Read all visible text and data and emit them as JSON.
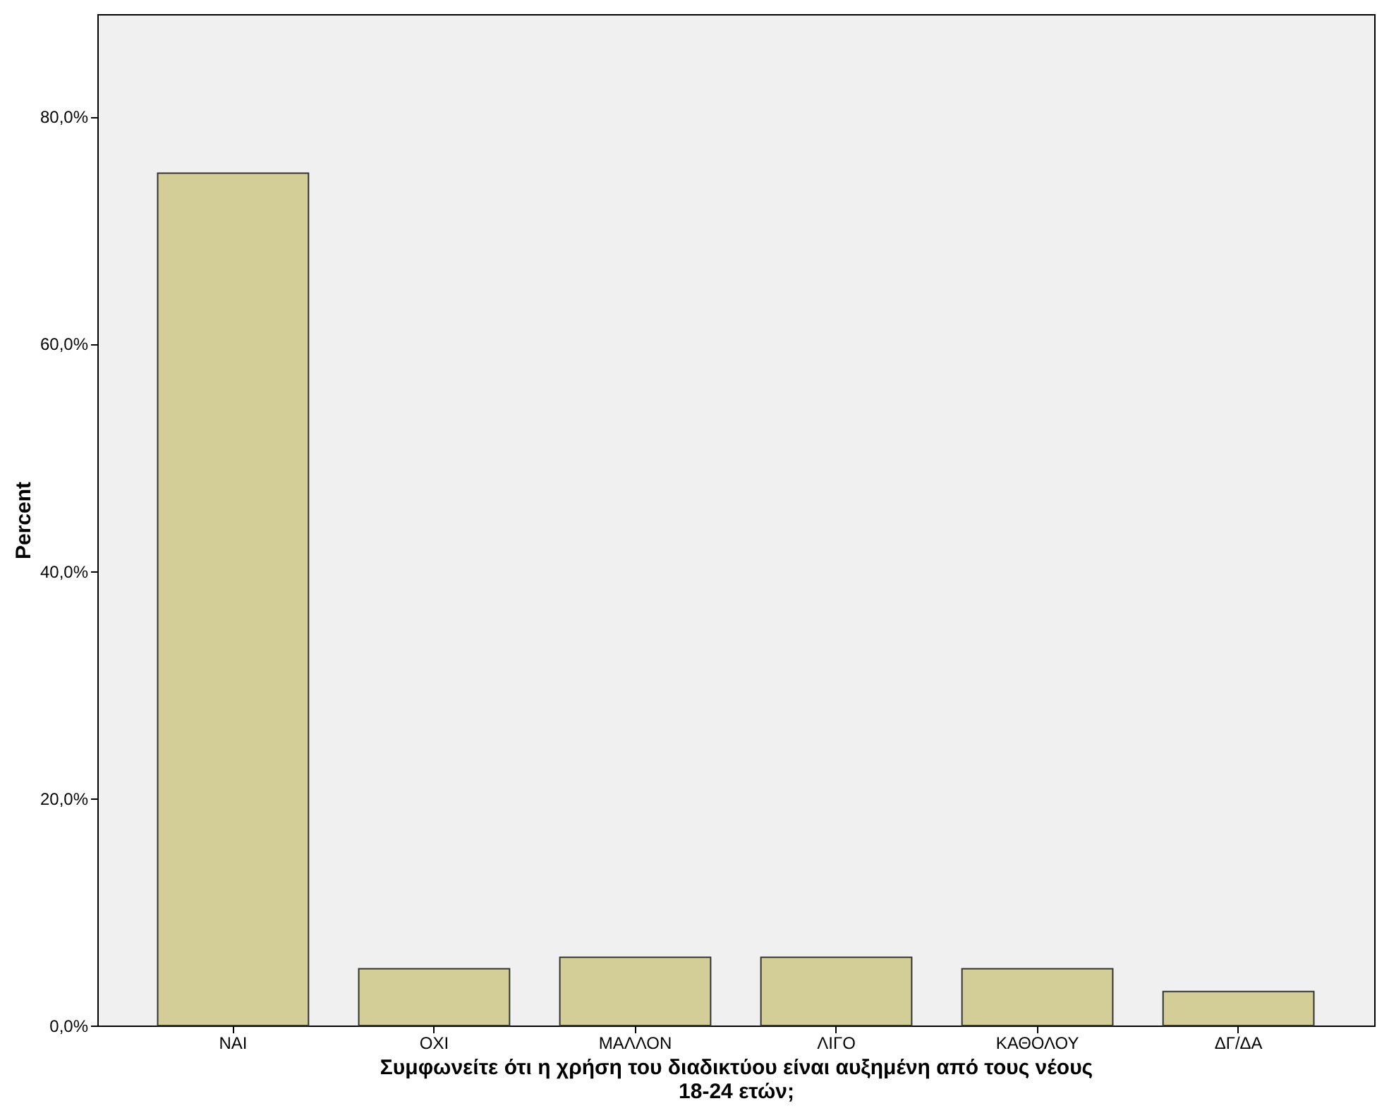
{
  "chart_data": {
    "type": "bar",
    "categories": [
      "ΝΑΙ",
      "ΟΧΙ",
      "ΜΑΛΛΟΝ",
      "ΛΙΓΟ",
      "ΚΑΘΟΛΟΥ",
      "ΔΓ/ΔΑ"
    ],
    "values": [
      75,
      5,
      6,
      6,
      5,
      3
    ],
    "color": "#d3ce97",
    "xlabel": "Συμφωνείτε ότι η χρήση του διαδικτύου είναι αυξημένη από τους νέους\n18-24 ετών;",
    "ylabel": "Percent",
    "ylim": [
      0,
      89
    ],
    "yticks": [
      {
        "value": 0,
        "label": "0,0%"
      },
      {
        "value": 20,
        "label": "20,0%"
      },
      {
        "value": 40,
        "label": "40,0%"
      },
      {
        "value": 60,
        "label": "60,0%"
      },
      {
        "value": 80,
        "label": "80,0%"
      }
    ],
    "grid": false
  }
}
